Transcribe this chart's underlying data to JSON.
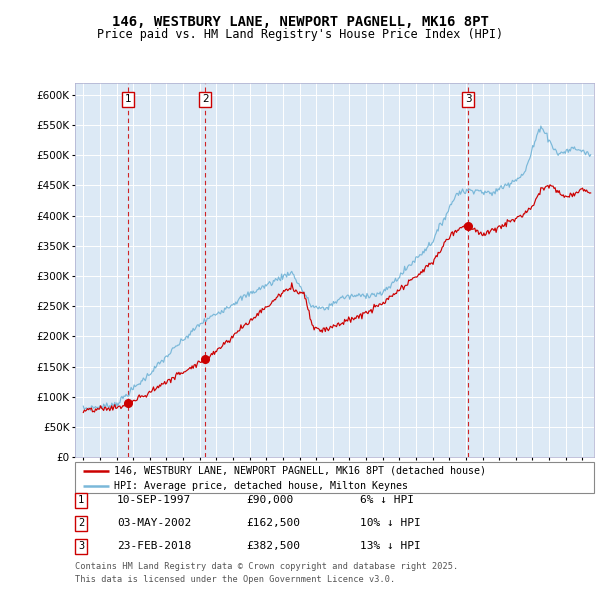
{
  "title": "146, WESTBURY LANE, NEWPORT PAGNELL, MK16 8PT",
  "subtitle": "Price paid vs. HM Land Registry's House Price Index (HPI)",
  "legend_line1": "146, WESTBURY LANE, NEWPORT PAGNELL, MK16 8PT (detached house)",
  "legend_line2": "HPI: Average price, detached house, Milton Keynes",
  "transaction1_date": "10-SEP-1997",
  "transaction1_price": 90000,
  "transaction1_hpi": "6% ↓ HPI",
  "transaction1_year": 1997.69,
  "transaction2_date": "03-MAY-2002",
  "transaction2_price": 162500,
  "transaction2_hpi": "10% ↓ HPI",
  "transaction2_year": 2002.33,
  "transaction3_date": "23-FEB-2018",
  "transaction3_price": 382500,
  "transaction3_hpi": "13% ↓ HPI",
  "transaction3_year": 2018.14,
  "footnote1": "Contains HM Land Registry data © Crown copyright and database right 2025.",
  "footnote2": "This data is licensed under the Open Government Licence v3.0.",
  "hpi_color": "#7ab8d9",
  "price_color": "#cc0000",
  "plot_bg_color": "#dce9f5",
  "grid_color": "#ffffff",
  "vline_color": "#cc0000",
  "ylim": [
    0,
    620000
  ],
  "yticks": [
    0,
    50000,
    100000,
    150000,
    200000,
    250000,
    300000,
    350000,
    400000,
    450000,
    500000,
    550000,
    600000
  ],
  "xlim_start": 1994.5,
  "xlim_end": 2025.7
}
